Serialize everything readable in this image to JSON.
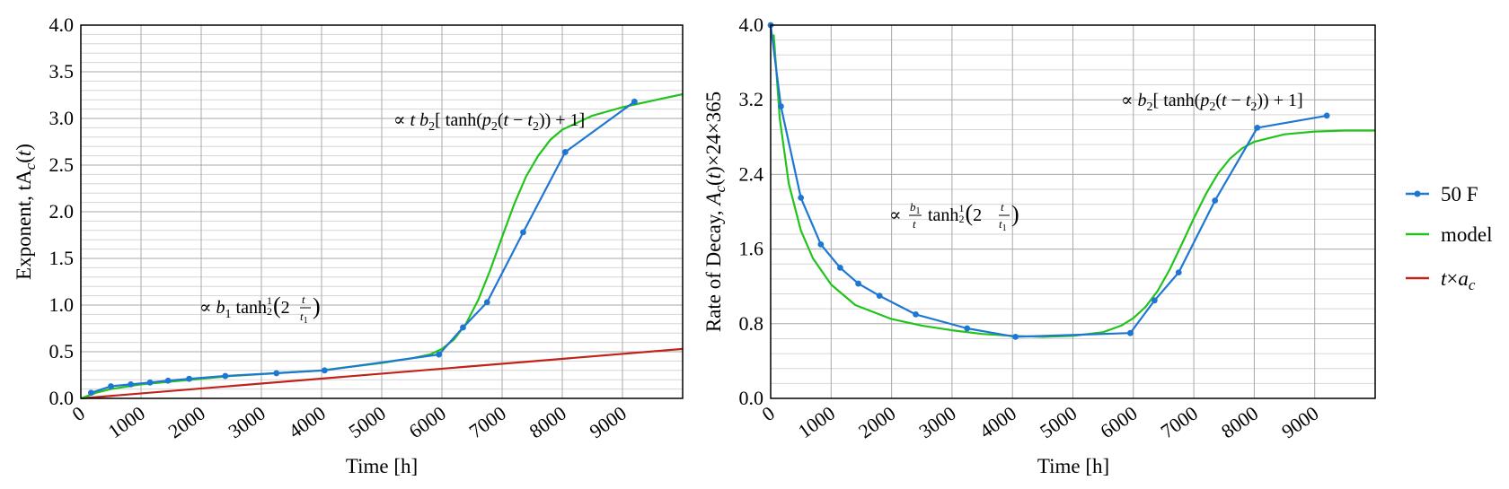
{
  "chart_data": [
    {
      "type": "line",
      "xlabel": "Time [h]",
      "ylabel": "Exponent, tA_c(t)",
      "xlim": [
        0,
        10000
      ],
      "ylim": [
        0,
        4.0
      ],
      "xticks": [
        0,
        1000,
        2000,
        3000,
        4000,
        5000,
        6000,
        7000,
        8000,
        9000
      ],
      "xtick_labels": [
        "0",
        "1000",
        "2000",
        "3000",
        "4000",
        "5000",
        "6000",
        "7000",
        "8000",
        "9000"
      ],
      "yticks": [
        0,
        0.5,
        1.0,
        1.5,
        2.0,
        2.5,
        3.0,
        3.5,
        4.0
      ],
      "ytick_labels": [
        "0.0",
        "0.5",
        "1.0",
        "1.5",
        "2.0",
        "2.5",
        "3.0",
        "3.5",
        "4.0"
      ],
      "grid": true,
      "annotations": [
        {
          "text": "∝ b₁ tanh^½(2 t/t₁)",
          "x": 2000,
          "y": 1.0
        },
        {
          "text": "∝ t  b₂[ tanh(p₂(t − t₂)) + 1]",
          "x": 7000,
          "y": 3.0
        }
      ],
      "series": [
        {
          "name": "50 F",
          "color": "#1f77d4",
          "x": [
            170,
            500,
            830,
            1150,
            1450,
            1800,
            2400,
            3250,
            4050,
            5950,
            6350,
            6750,
            7350,
            8050,
            9200
          ],
          "y": [
            0.06,
            0.13,
            0.15,
            0.17,
            0.19,
            0.21,
            0.24,
            0.27,
            0.3,
            0.47,
            0.76,
            1.03,
            1.78,
            2.64,
            3.18
          ]
        },
        {
          "name": "model",
          "color": "#22c41c",
          "x": [
            0,
            250,
            500,
            1000,
            1500,
            2000,
            2500,
            3000,
            3500,
            4000,
            4500,
            5000,
            5500,
            5800,
            6000,
            6200,
            6400,
            6600,
            6800,
            7000,
            7200,
            7400,
            7600,
            7800,
            8000,
            8500,
            9000,
            9500,
            10000
          ],
          "y": [
            0.0,
            0.06,
            0.1,
            0.15,
            0.18,
            0.21,
            0.24,
            0.26,
            0.28,
            0.3,
            0.34,
            0.38,
            0.43,
            0.47,
            0.53,
            0.63,
            0.8,
            1.05,
            1.37,
            1.73,
            2.08,
            2.38,
            2.6,
            2.77,
            2.88,
            3.03,
            3.12,
            3.19,
            3.26
          ]
        },
        {
          "name": "t×a_c",
          "color": "#c0221c",
          "x": [
            0,
            10000
          ],
          "y": [
            0.0,
            0.53
          ]
        }
      ]
    },
    {
      "type": "line",
      "xlabel": "Time [h]",
      "ylabel": "Rate of Decay, A_c(t)×24×365",
      "xlim": [
        0,
        10000
      ],
      "ylim": [
        0,
        4.0
      ],
      "xticks": [
        0,
        1000,
        2000,
        3000,
        4000,
        5000,
        6000,
        7000,
        8000,
        9000
      ],
      "xtick_labels": [
        "0",
        "1000",
        "2000",
        "3000",
        "4000",
        "5000",
        "6000",
        "7000",
        "8000",
        "9000"
      ],
      "yticks": [
        0,
        0.8,
        1.6,
        2.4,
        3.2,
        4.0
      ],
      "ytick_labels": [
        "0.0",
        "0.8",
        "1.6",
        "2.4",
        "3.2",
        "4.0"
      ],
      "grid": true,
      "annotations": [
        {
          "text": "∝ (b₁/t) tanh^½(2 t/t₁)",
          "x": 2500,
          "y": 2.0
        },
        {
          "text": "∝ b₂[ tanh(p₂(t − t₂)) + 1]",
          "x": 8000,
          "y": 3.2
        }
      ],
      "series": [
        {
          "name": "50 F",
          "color": "#1f77d4",
          "x": [
            0,
            170,
            500,
            830,
            1150,
            1450,
            1800,
            2400,
            3250,
            4050,
            5950,
            6350,
            6750,
            7350,
            8050,
            9200
          ],
          "y": [
            4.0,
            3.13,
            2.15,
            1.65,
            1.4,
            1.23,
            1.1,
            0.9,
            0.75,
            0.66,
            0.7,
            1.05,
            1.35,
            2.12,
            2.9,
            3.03
          ]
        },
        {
          "name": "model",
          "color": "#22c41c",
          "x": [
            50,
            150,
            300,
            500,
            700,
            1000,
            1400,
            2000,
            2500,
            3000,
            3500,
            4000,
            4500,
            5000,
            5500,
            5800,
            6000,
            6200,
            6400,
            6600,
            6800,
            7000,
            7200,
            7400,
            7600,
            7800,
            8000,
            8500,
            9000,
            9500,
            10000
          ],
          "y": [
            3.9,
            3.0,
            2.3,
            1.8,
            1.5,
            1.22,
            1.0,
            0.85,
            0.78,
            0.73,
            0.69,
            0.67,
            0.66,
            0.67,
            0.71,
            0.78,
            0.86,
            0.98,
            1.15,
            1.38,
            1.65,
            1.93,
            2.19,
            2.41,
            2.57,
            2.68,
            2.75,
            2.83,
            2.86,
            2.87,
            2.87
          ]
        }
      ]
    }
  ],
  "legend": {
    "position": "right",
    "entries": [
      {
        "label": "50 F",
        "color": "#1f77d4",
        "marker": true
      },
      {
        "label": "model",
        "color": "#22c41c",
        "marker": false
      },
      {
        "label": "t×a_c",
        "color": "#c0221c",
        "marker": false
      }
    ]
  }
}
